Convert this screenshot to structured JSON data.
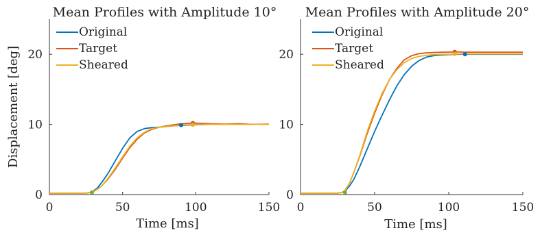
{
  "chart_data": [
    {
      "type": "line",
      "title": "Mean Profiles with Amplitude 10°",
      "xlabel": "Time [ms]",
      "ylabel": "Displacement [deg]",
      "xlim": [
        0,
        150
      ],
      "ylim": [
        0,
        25
      ],
      "xticks": [
        "0",
        "50",
        "100",
        "150"
      ],
      "yticks": [
        "0",
        "10",
        "20"
      ],
      "grid": false,
      "legend_position": "top-left",
      "series": [
        {
          "name": "Original",
          "color": "#0072BD",
          "x": [
            0,
            25,
            28,
            30,
            33,
            36,
            40,
            45,
            50,
            55,
            60,
            65,
            70,
            75,
            80,
            85,
            90,
            95,
            100,
            110,
            120,
            130,
            140,
            150
          ],
          "y": [
            0.2,
            0.2,
            0.3,
            0.5,
            1.0,
            1.8,
            3.0,
            4.8,
            6.6,
            8.1,
            9.0,
            9.4,
            9.55,
            9.6,
            9.7,
            9.8,
            9.85,
            9.9,
            9.95,
            10.0,
            10.0,
            10.0,
            10.0,
            10.0
          ],
          "marker": {
            "x": 90,
            "y": 9.9
          }
        },
        {
          "name": "Target",
          "color": "#D95319",
          "x": [
            0,
            25,
            28,
            30,
            33,
            36,
            40,
            45,
            50,
            55,
            60,
            65,
            70,
            75,
            80,
            85,
            90,
            95,
            100,
            110,
            120,
            130,
            140,
            150
          ],
          "y": [
            0.2,
            0.2,
            0.3,
            0.4,
            0.8,
            1.3,
            2.2,
            3.6,
            5.2,
            6.7,
            7.9,
            8.8,
            9.3,
            9.6,
            9.8,
            9.95,
            10.1,
            10.15,
            10.2,
            10.1,
            10.05,
            10.1,
            10.0,
            10.05
          ],
          "marker": {
            "x": 98,
            "y": 10.2
          }
        },
        {
          "name": "Sheared",
          "color": "#EDB120",
          "x": [
            0,
            25,
            28,
            30,
            33,
            36,
            40,
            45,
            50,
            55,
            60,
            65,
            70,
            75,
            80,
            85,
            90,
            95,
            100,
            110,
            120,
            130,
            140,
            150
          ],
          "y": [
            0.2,
            0.2,
            0.3,
            0.4,
            0.8,
            1.3,
            2.3,
            3.8,
            5.4,
            6.9,
            8.1,
            8.9,
            9.4,
            9.6,
            9.7,
            9.8,
            9.9,
            9.95,
            10.0,
            10.0,
            10.0,
            10.0,
            10.0,
            10.0
          ],
          "marker": {
            "x": 98,
            "y": 9.95
          }
        }
      ],
      "onset_marker": {
        "x": 29,
        "y": 0.3,
        "color": "#77AC30"
      }
    },
    {
      "type": "line",
      "title": "Mean Profiles with Amplitude 20°",
      "xlabel": "Time [ms]",
      "ylabel": "",
      "xlim": [
        0,
        150
      ],
      "ylim": [
        0,
        25
      ],
      "xticks": [
        "0",
        "50",
        "100",
        "150"
      ],
      "yticks": [
        "0",
        "10",
        "20"
      ],
      "grid": false,
      "legend_position": "top-left",
      "series": [
        {
          "name": "Original",
          "color": "#0072BD",
          "x": [
            0,
            25,
            28,
            30,
            33,
            36,
            40,
            45,
            50,
            55,
            60,
            65,
            70,
            75,
            80,
            85,
            90,
            95,
            100,
            105,
            110,
            120,
            130,
            140,
            150
          ],
          "y": [
            0.2,
            0.2,
            0.3,
            0.5,
            1.2,
            2.2,
            4.0,
            6.5,
            9.0,
            11.3,
            13.5,
            15.5,
            17.1,
            18.3,
            19.1,
            19.6,
            19.8,
            19.9,
            19.95,
            20.0,
            20.0,
            20.0,
            20.0,
            20.0,
            20.0
          ],
          "marker": {
            "x": 111,
            "y": 20.0
          }
        },
        {
          "name": "Target",
          "color": "#D95319",
          "x": [
            0,
            25,
            28,
            30,
            33,
            36,
            40,
            45,
            50,
            55,
            60,
            65,
            70,
            75,
            80,
            85,
            90,
            95,
            100,
            105,
            110,
            120,
            130,
            140,
            150
          ],
          "y": [
            0.2,
            0.2,
            0.3,
            0.6,
            1.6,
            3.2,
            5.5,
            8.7,
            11.6,
            14.2,
            16.4,
            18.0,
            19.2,
            19.8,
            20.1,
            20.2,
            20.25,
            20.3,
            20.3,
            20.35,
            20.3,
            20.3,
            20.3,
            20.3,
            20.3
          ],
          "marker": {
            "x": 104,
            "y": 20.35
          }
        },
        {
          "name": "Sheared",
          "color": "#EDB120",
          "x": [
            0,
            25,
            28,
            30,
            33,
            36,
            40,
            45,
            50,
            55,
            60,
            65,
            70,
            75,
            80,
            85,
            90,
            95,
            100,
            105,
            110,
            120,
            130,
            140,
            150
          ],
          "y": [
            0.2,
            0.2,
            0.3,
            0.6,
            1.6,
            3.2,
            5.6,
            9.0,
            11.9,
            14.4,
            16.4,
            17.8,
            18.8,
            19.4,
            19.7,
            19.85,
            19.95,
            20.0,
            20.0,
            20.05,
            20.05,
            20.05,
            20.05,
            20.05,
            20.05
          ],
          "marker": {
            "x": 104,
            "y": 20.05
          }
        }
      ],
      "onset_marker": {
        "x": 30,
        "y": 0.3,
        "color": "#77AC30"
      }
    }
  ]
}
